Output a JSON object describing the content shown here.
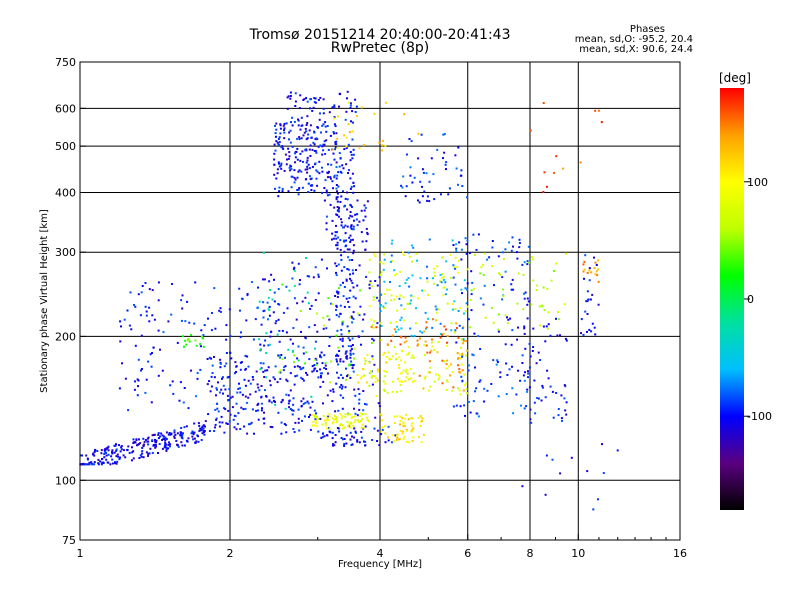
{
  "chart_data": {
    "type": "scatter",
    "title": "Tromsø 20151214 20:40:00-20:41:43",
    "subtitle": "RwPretec (8p)",
    "xlabel": "Frequency [MHz]",
    "ylabel": "Stationary phase Virtual Height [km]",
    "x_scale": "log",
    "y_scale": "log",
    "xlim": [
      1,
      16
    ],
    "ylim": [
      75,
      750
    ],
    "x_ticks": [
      1,
      2,
      4,
      6,
      8,
      10,
      16
    ],
    "x_tick_labels": [
      "1",
      "2",
      "4",
      "6",
      "8",
      "10",
      "16"
    ],
    "y_ticks": [
      75,
      100,
      200,
      300,
      400,
      500,
      600,
      750
    ],
    "y_tick_labels": [
      "75",
      "100",
      "200",
      "300",
      "400",
      "500",
      "600",
      "750"
    ],
    "grid": true,
    "phase_stats": {
      "heading": "Phases",
      "line_o": "mean, sd,O: -95.2, 20.4",
      "line_x": "mean, sd,X:  90.6, 24.4"
    },
    "colorbar": {
      "label": "[deg]",
      "range": [
        -180,
        180
      ],
      "tick_values": [
        100,
        0,
        -100
      ],
      "tick_labels": [
        "100",
        "0",
        "-100"
      ],
      "colormap": [
        "#000000",
        "#5a0080",
        "#0000ff",
        "#00c0ff",
        "#00e0a0",
        "#00ff00",
        "#c0ff00",
        "#ffff00",
        "#ffa000",
        "#ff0000"
      ]
    },
    "clusters": [
      {
        "phase": -105,
        "n": 260,
        "x": [
          1.0,
          1.8
        ],
        "y": [
          108,
          135
        ],
        "trend": true
      },
      {
        "phase": -100,
        "n": 200,
        "x": [
          1.8,
          3.1
        ],
        "y": [
          125,
          185
        ]
      },
      {
        "phase": -100,
        "n": 190,
        "x": [
          2.3,
          4.0
        ],
        "y": [
          135,
          290
        ]
      },
      {
        "phase": -102,
        "n": 230,
        "x": [
          2.45,
          3.3
        ],
        "y": [
          390,
          560
        ]
      },
      {
        "phase": -100,
        "n": 60,
        "x": [
          2.6,
          3.6
        ],
        "y": [
          560,
          650
        ]
      },
      {
        "phase": -98,
        "n": 170,
        "x": [
          3.25,
          3.55
        ],
        "y": [
          150,
          520
        ]
      },
      {
        "phase": -100,
        "n": 60,
        "x": [
          3.1,
          3.8
        ],
        "y": [
          300,
          390
        ]
      },
      {
        "phase": -95,
        "n": 150,
        "x": [
          1.2,
          2.4
        ],
        "y": [
          140,
          260
        ]
      },
      {
        "phase": -100,
        "n": 60,
        "x": [
          3.0,
          4.3
        ],
        "y": [
          118,
          130
        ]
      },
      {
        "phase": 90,
        "n": 80,
        "x": [
          2.9,
          3.8
        ],
        "y": [
          128,
          138
        ]
      },
      {
        "phase": 100,
        "n": 50,
        "x": [
          3.6,
          4.7
        ],
        "y": [
          160,
          185
        ]
      },
      {
        "phase": 110,
        "n": 60,
        "x": [
          4.0,
          4.9
        ],
        "y": [
          120,
          138
        ]
      },
      {
        "phase": 80,
        "n": 160,
        "x": [
          3.8,
          6.0
        ],
        "y": [
          150,
          300
        ]
      },
      {
        "phase": -60,
        "n": 80,
        "x": [
          4.0,
          6.0
        ],
        "y": [
          200,
          320
        ]
      },
      {
        "phase": 140,
        "n": 40,
        "x": [
          4.8,
          6.0
        ],
        "y": [
          150,
          220
        ]
      },
      {
        "phase": -90,
        "n": 130,
        "x": [
          5.6,
          8.0
        ],
        "y": [
          135,
          330
        ]
      },
      {
        "phase": -100,
        "n": 60,
        "x": [
          7.7,
          9.5
        ],
        "y": [
          130,
          220
        ]
      },
      {
        "phase": 60,
        "n": 50,
        "x": [
          6.0,
          9.5
        ],
        "y": [
          200,
          300
        ]
      },
      {
        "phase": -90,
        "n": 50,
        "x": [
          4.4,
          6.0
        ],
        "y": [
          380,
          540
        ]
      },
      {
        "phase": 50,
        "n": 40,
        "x": [
          2.5,
          4.0
        ],
        "y": [
          160,
          260
        ]
      },
      {
        "phase": 30,
        "n": 15,
        "x": [
          1.6,
          1.8
        ],
        "y": [
          190,
          205
        ]
      },
      {
        "phase": -20,
        "n": 30,
        "x": [
          2.2,
          3.0
        ],
        "y": [
          140,
          300
        ]
      },
      {
        "phase": 140,
        "n": 15,
        "x": [
          10.2,
          11.0
        ],
        "y": [
          255,
          290
        ]
      },
      {
        "phase": -100,
        "n": 25,
        "x": [
          10.0,
          11.0
        ],
        "y": [
          200,
          300
        ]
      },
      {
        "phase": 150,
        "n": 25,
        "x": [
          3.8,
          5.8
        ],
        "y": [
          190,
          210
        ]
      },
      {
        "phase": 120,
        "n": 25,
        "x": [
          3.2,
          4.8
        ],
        "y": [
          480,
          620
        ]
      },
      {
        "phase": 160,
        "n": 12,
        "x": [
          6.3,
          11.5
        ],
        "y": [
          400,
          650
        ]
      },
      {
        "phase": -100,
        "n": 12,
        "x": [
          7.5,
          12.0
        ],
        "y": [
          85,
          120
        ]
      }
    ]
  }
}
